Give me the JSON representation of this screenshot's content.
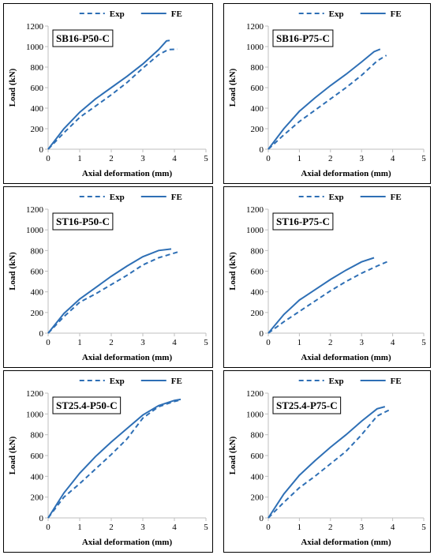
{
  "colors": {
    "series": "#2e6fb5",
    "axis": "#bfbfbf",
    "frame": "#000000"
  },
  "chart_data": [
    {
      "type": "line",
      "title": "SB16-P50-C",
      "xlabel": "Axial deformation (mm)",
      "ylabel": "Load (kN)",
      "xlim": [
        0,
        5
      ],
      "ylim": [
        0,
        1200
      ],
      "xticks": [
        "0",
        "1",
        "2",
        "3",
        "4",
        "5"
      ],
      "yticks": [
        "0",
        "200",
        "400",
        "600",
        "800",
        "1000",
        "1200"
      ],
      "legend": "top",
      "grid": false,
      "series": [
        {
          "name": "Exp",
          "style": "dashed",
          "x": [
            0,
            0.5,
            1,
            1.5,
            2,
            2.5,
            3,
            3.5,
            3.8,
            4.1
          ],
          "y": [
            0,
            160,
            310,
            420,
            530,
            650,
            790,
            920,
            970,
            975
          ]
        },
        {
          "name": "FE",
          "style": "solid",
          "x": [
            0,
            0.5,
            1,
            1.5,
            2,
            2.5,
            3,
            3.5,
            3.75,
            3.85
          ],
          "y": [
            0,
            200,
            360,
            490,
            600,
            710,
            830,
            970,
            1055,
            1060
          ]
        }
      ]
    },
    {
      "type": "line",
      "title": "SB16-P75-C",
      "xlabel": "Axial deformation (mm)",
      "ylabel": "Load (kN)",
      "xlim": [
        0,
        5
      ],
      "ylim": [
        0,
        1200
      ],
      "xticks": [
        "0",
        "1",
        "2",
        "3",
        "4",
        "5"
      ],
      "yticks": [
        "0",
        "200",
        "400",
        "600",
        "800",
        "1000",
        "1200"
      ],
      "legend": "top",
      "grid": false,
      "series": [
        {
          "name": "Exp",
          "style": "dashed",
          "x": [
            0,
            0.5,
            1,
            1.5,
            2,
            2.5,
            3,
            3.5,
            3.8
          ],
          "y": [
            0,
            140,
            270,
            380,
            490,
            600,
            720,
            860,
            915
          ]
        },
        {
          "name": "FE",
          "style": "solid",
          "x": [
            0,
            0.5,
            1,
            1.5,
            2,
            2.5,
            3,
            3.4,
            3.6
          ],
          "y": [
            0,
            200,
            370,
            500,
            620,
            730,
            850,
            950,
            975
          ]
        }
      ]
    },
    {
      "type": "line",
      "title": "ST16-P50-C",
      "xlabel": "Axial deformation (mm)",
      "ylabel": "Load (kN)",
      "xlim": [
        0,
        5
      ],
      "ylim": [
        0,
        1200
      ],
      "xticks": [
        "0",
        "1",
        "2",
        "3",
        "4",
        "5"
      ],
      "yticks": [
        "0",
        "200",
        "400",
        "600",
        "800",
        "1000",
        "1200"
      ],
      "legend": "top",
      "grid": false,
      "series": [
        {
          "name": "Exp",
          "style": "dashed",
          "x": [
            0,
            0.5,
            1,
            1.5,
            2,
            2.5,
            3,
            3.5,
            4.1
          ],
          "y": [
            0,
            160,
            300,
            380,
            470,
            560,
            660,
            730,
            785
          ]
        },
        {
          "name": "FE",
          "style": "solid",
          "x": [
            0,
            0.5,
            1,
            1.5,
            2,
            2.5,
            3,
            3.5,
            3.9
          ],
          "y": [
            0,
            190,
            330,
            440,
            550,
            650,
            740,
            800,
            815
          ]
        }
      ]
    },
    {
      "type": "line",
      "title": "ST16-P75-C",
      "xlabel": "Axial deformation (mm)",
      "ylabel": "Load (kN)",
      "xlim": [
        0,
        5
      ],
      "ylim": [
        0,
        1200
      ],
      "xticks": [
        "0",
        "1",
        "2",
        "3",
        "4",
        "5"
      ],
      "yticks": [
        "0",
        "200",
        "400",
        "600",
        "800",
        "1000",
        "1200"
      ],
      "legend": "top",
      "grid": false,
      "series": [
        {
          "name": "Exp",
          "style": "dashed",
          "x": [
            0,
            0.5,
            1,
            1.5,
            2,
            2.5,
            3,
            3.5,
            3.85
          ],
          "y": [
            0,
            110,
            210,
            310,
            410,
            500,
            580,
            650,
            695
          ]
        },
        {
          "name": "FE",
          "style": "solid",
          "x": [
            0,
            0.5,
            1,
            1.5,
            2,
            2.5,
            3,
            3.4
          ],
          "y": [
            0,
            180,
            320,
            420,
            520,
            610,
            690,
            730
          ]
        }
      ]
    },
    {
      "type": "line",
      "title": "ST25.4-P50-C",
      "xlabel": "Axial deformation (mm)",
      "ylabel": "Load (kN)",
      "xlim": [
        0,
        5
      ],
      "ylim": [
        0,
        1200
      ],
      "xticks": [
        "0",
        "1",
        "2",
        "3",
        "4",
        "5"
      ],
      "yticks": [
        "0",
        "200",
        "400",
        "600",
        "800",
        "1000",
        "1200"
      ],
      "legend": "top",
      "grid": false,
      "series": [
        {
          "name": "Exp",
          "style": "dashed",
          "x": [
            0,
            0.5,
            1,
            1.5,
            2,
            2.5,
            3,
            3.5,
            4,
            4.2
          ],
          "y": [
            0,
            200,
            330,
            470,
            610,
            760,
            960,
            1070,
            1120,
            1135
          ]
        },
        {
          "name": "FE",
          "style": "solid",
          "x": [
            0,
            0.5,
            1,
            1.5,
            2,
            2.5,
            3,
            3.5,
            4,
            4.2
          ],
          "y": [
            0,
            240,
            430,
            590,
            730,
            860,
            990,
            1080,
            1130,
            1140
          ]
        }
      ]
    },
    {
      "type": "line",
      "title": "ST25.4-P75-C",
      "xlabel": "Axial deformation (mm)",
      "ylabel": "Load (kN)",
      "xlim": [
        0,
        5
      ],
      "ylim": [
        0,
        1200
      ],
      "xticks": [
        "0",
        "1",
        "2",
        "3",
        "4",
        "5"
      ],
      "yticks": [
        "0",
        "200",
        "400",
        "600",
        "800",
        "1000",
        "1200"
      ],
      "legend": "top",
      "grid": false,
      "series": [
        {
          "name": "Exp",
          "style": "dashed",
          "x": [
            0,
            0.5,
            1,
            1.5,
            2,
            2.5,
            3,
            3.5,
            3.9
          ],
          "y": [
            0,
            150,
            290,
            400,
            520,
            640,
            800,
            980,
            1040
          ]
        },
        {
          "name": "FE",
          "style": "solid",
          "x": [
            0,
            0.5,
            1,
            1.5,
            2,
            2.5,
            3,
            3.5,
            3.75
          ],
          "y": [
            0,
            230,
            410,
            550,
            680,
            800,
            930,
            1050,
            1070
          ]
        }
      ]
    }
  ]
}
